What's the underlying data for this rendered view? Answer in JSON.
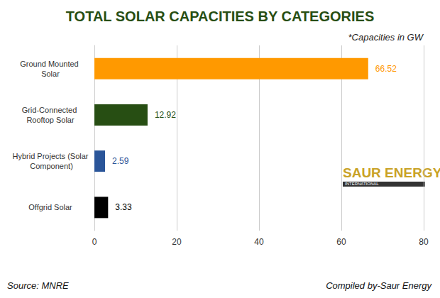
{
  "chart_data": {
    "type": "bar",
    "orientation": "horizontal",
    "title": "TOTAL SOLAR CAPACITIES BY CATEGORIES",
    "annotations": [
      "*Capacities in GW",
      "SAUR ENERGY",
      "INTERNATIONAL",
      "Source: MNRE",
      "Compiled by-Saur Energy"
    ],
    "categories": [
      "Ground Mounted Solar",
      "Grid-Connected Rooftop Solar",
      "Hybrid Projects (Solar Component)",
      "Offgrid Solar"
    ],
    "values": [
      66.52,
      12.92,
      2.59,
      3.33
    ],
    "colors": [
      "#ff9900",
      "#274e13",
      "#2a5599",
      "#000000"
    ],
    "xlim": [
      0,
      80
    ],
    "xticks": [
      0,
      20,
      40,
      60,
      80
    ],
    "grid": true,
    "data_labels": true
  }
}
